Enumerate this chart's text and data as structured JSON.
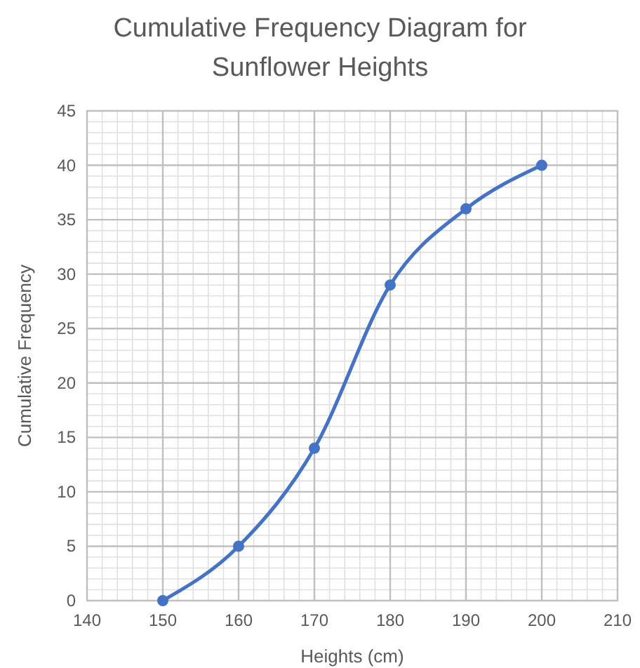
{
  "chart_data": {
    "type": "line",
    "title": "Cumulative Frequency Diagram for Sunflower Heights",
    "xlabel": "Heights (cm)",
    "ylabel": "Cumulative Frequency",
    "x": [
      150,
      160,
      170,
      180,
      190,
      200
    ],
    "series": [
      {
        "color": "#4472c4",
        "values": [
          0,
          5,
          14,
          29,
          36,
          40
        ]
      }
    ],
    "xlim": [
      140,
      210
    ],
    "xticks": [
      140,
      150,
      160,
      170,
      180,
      190,
      200,
      210
    ],
    "ylim": [
      0,
      45
    ],
    "yticks": [
      0,
      5,
      10,
      15,
      20,
      25,
      30,
      35,
      40,
      45
    ],
    "grid": true,
    "marker": "circle",
    "line_style": "solid"
  }
}
